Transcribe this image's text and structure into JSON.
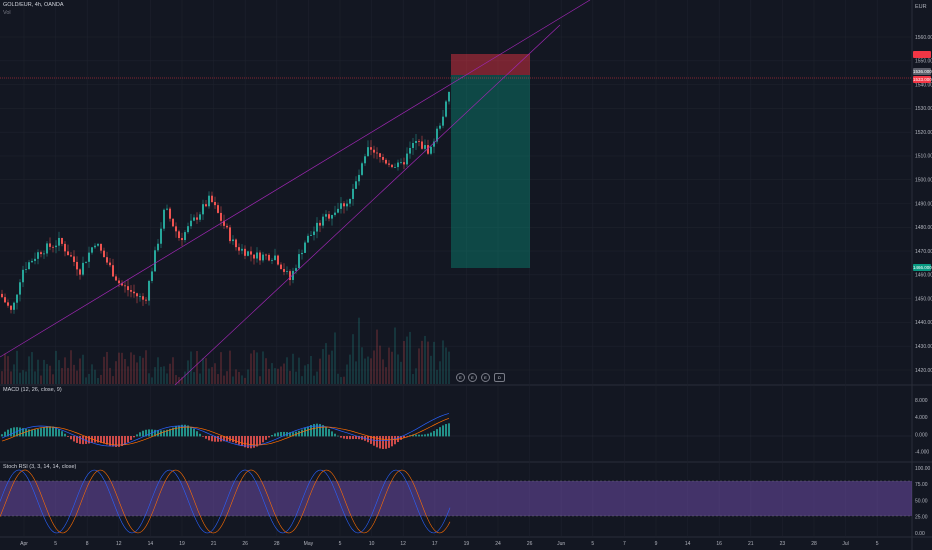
{
  "header": {
    "symbol_line": "GOLD/EUR, 4h, OANDA",
    "vol_label": "Vol"
  },
  "currency": "EUR",
  "price_axis_labels": [
    "1560.000",
    "1550.000",
    "1540.000",
    "1530.000",
    "1520.000",
    "1510.000",
    "1500.000",
    "1490.000",
    "1480.000",
    "1470.000",
    "1460.000",
    "1450.000",
    "1440.000",
    "1430.000",
    "1420.000"
  ],
  "price_tags": {
    "target": "",
    "last_top": "1536.000",
    "last_bottom": "1533.000",
    "stop": "1466.000"
  },
  "macd": {
    "label": "MACD (12, 26, close, 9)",
    "axis_labels": [
      "8.000",
      "4.000",
      "0.000",
      "-4.000"
    ]
  },
  "stoch": {
    "label": "Stoch RSI (3, 3, 14, 14, close)",
    "axis_labels": [
      "100.00",
      "75.00",
      "50.00",
      "25.00",
      "0.00"
    ]
  },
  "time_axis_labels": [
    "Apr",
    "5",
    "8",
    "12",
    "14",
    "19",
    "21",
    "26",
    "28",
    "May",
    "5",
    "10",
    "12",
    "17",
    "19",
    "24",
    "26",
    "Jun",
    "5",
    "7",
    "9",
    "14",
    "16",
    "21",
    "23",
    "28",
    "Jul",
    "5"
  ],
  "chart_data": {
    "type": "candlestick",
    "title": "GOLD/EUR, 4h, OANDA",
    "y_axis_range": [
      1420,
      1560
    ],
    "long_position": {
      "stop_zone": [
        1535,
        1547
      ],
      "target_zone": [
        1465,
        1535
      ]
    },
    "colors": {
      "up": "#26a69a",
      "down": "#ef5350",
      "channel": "#9c27b0",
      "stoch_band": "#7e57c2"
    }
  }
}
